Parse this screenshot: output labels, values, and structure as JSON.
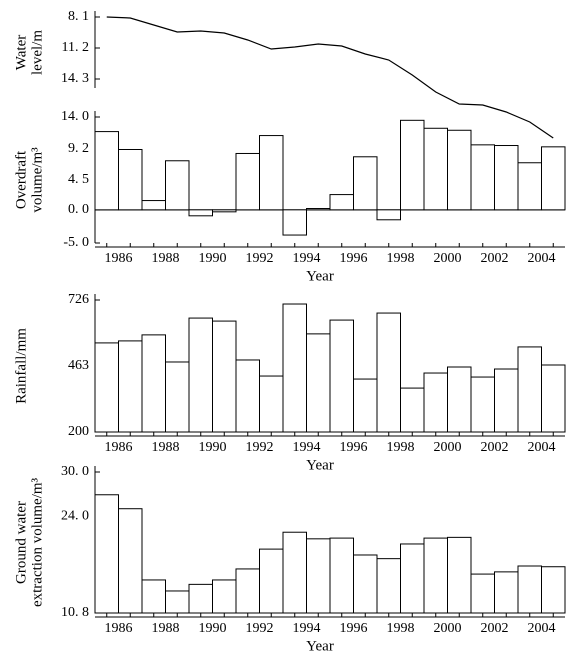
{
  "chart_data": [
    {
      "type": "line",
      "ylabel": [
        "Water",
        "level/m"
      ],
      "inverted": true,
      "color": "#000000",
      "x": [
        1986,
        1987,
        1988,
        1989,
        1990,
        1991,
        1992,
        1993,
        1994,
        1995,
        1996,
        1997,
        1998,
        1999,
        2000,
        2001,
        2002,
        2003,
        2004,
        2005
      ],
      "xlim": [
        1985.5,
        2005.5
      ],
      "values": [
        8.1,
        8.2,
        8.9,
        9.6,
        9.5,
        9.7,
        10.4,
        11.3,
        11.1,
        10.8,
        11.0,
        11.8,
        12.4,
        13.9,
        15.6,
        16.8,
        16.9,
        17.6,
        18.6,
        20.2
      ],
      "ylim": [
        8.1,
        20.5
      ],
      "yticks": [
        {
          "value": 8.1,
          "label": "8. 1"
        },
        {
          "value": 11.2,
          "label": "11. 2"
        },
        {
          "value": 14.3,
          "label": "14. 3"
        }
      ]
    },
    {
      "type": "bar",
      "ylabel": [
        "Overdraft",
        "volume/m³"
      ],
      "xlabel": "Year",
      "color": "#ffffff",
      "categories": [
        "1986",
        null,
        "1988",
        null,
        "1990",
        null,
        "1992",
        null,
        "1994",
        null,
        "1996",
        null,
        "1998",
        null,
        "2000",
        null,
        "2002",
        null,
        "2004",
        null
      ],
      "values": [
        11.8,
        9.1,
        1.4,
        7.4,
        -0.9,
        -0.3,
        8.5,
        11.2,
        -3.8,
        0.2,
        2.3,
        8.0,
        -1.5,
        13.5,
        12.3,
        12.0,
        9.8,
        9.7,
        7.1,
        9.5
      ],
      "ylim": [
        -5,
        14
      ],
      "yticks": [
        {
          "value": 14,
          "label": "14. 0"
        },
        {
          "value": 9.2,
          "label": "9. 2"
        },
        {
          "value": 4.5,
          "label": "4. 5"
        },
        {
          "value": 0,
          "label": "0. 0"
        },
        {
          "value": -5,
          "label": "-5. 0"
        }
      ]
    },
    {
      "type": "bar",
      "ylabel": [
        "Rainfall/mm"
      ],
      "xlabel": "Year",
      "color": "#ffffff",
      "categories": [
        "1986",
        null,
        "1988",
        null,
        "1990",
        null,
        "1992",
        null,
        "1994",
        null,
        "1996",
        null,
        "1998",
        null,
        "2000",
        null,
        "2002",
        null,
        "2004",
        null
      ],
      "values": [
        555,
        563,
        587,
        479,
        654,
        642,
        487,
        423,
        710,
        591,
        646,
        411,
        674,
        375,
        435,
        459,
        419,
        451,
        539,
        467
      ],
      "ylim": [
        200,
        726
      ],
      "yticks": [
        726,
        463,
        200
      ]
    },
    {
      "type": "bar",
      "ylabel": [
        "Ground water",
        "extraction volume/m³"
      ],
      "xlabel": "Year",
      "color": "#ffffff",
      "categories": [
        "1986",
        null,
        "1988",
        null,
        "1990",
        null,
        "1992",
        null,
        "1994",
        null,
        "1996",
        null,
        "1998",
        null,
        "2000",
        null,
        "2002",
        null,
        "2004",
        null
      ],
      "values": [
        26.9,
        25.0,
        15.3,
        13.8,
        14.7,
        15.3,
        16.8,
        19.5,
        21.8,
        20.9,
        21.0,
        18.7,
        18.2,
        20.2,
        21.0,
        21.1,
        16.1,
        16.4,
        17.2,
        17.1
      ],
      "ylim": [
        10.8,
        30
      ],
      "yticks": [
        {
          "value": 30,
          "label": "30. 0"
        },
        {
          "value": 24,
          "label": "24. 0"
        },
        {
          "value": 10.8,
          "label": "10. 8"
        }
      ]
    }
  ]
}
